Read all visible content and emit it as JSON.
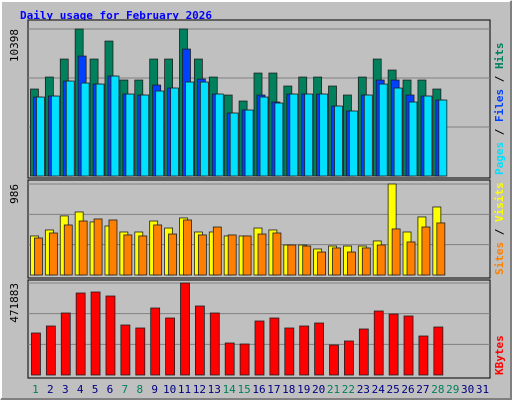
{
  "separator": "/",
  "chart_data": [
    {
      "type": "bar",
      "title": "Daily usage for February 2026",
      "ylim": [
        0,
        10398
      ],
      "yticks": [
        10398
      ],
      "series": [
        {
          "name": "Hits",
          "color": "#00805c",
          "values": [
            6151,
            6999,
            8272,
            10398,
            8272,
            9545,
            6787,
            6787,
            8272,
            8272,
            10398,
            8272,
            6999,
            5727,
            5303,
            7282,
            7282,
            6363,
            6999,
            6999,
            6363,
            5727,
            6999,
            8272,
            7494,
            6787,
            6787,
            6151,
            null,
            null,
            null
          ]
        },
        {
          "name": "Files",
          "color": "#0040ff",
          "values": [
            5585,
            5656,
            6717,
            8484,
            6504,
            7070,
            5797,
            5727,
            6434,
            6222,
            8979,
            6858,
            5797,
            4454,
            4666,
            5727,
            5232,
            5797,
            5797,
            5797,
            4949,
            4596,
            5727,
            6787,
            6787,
            5727,
            5656,
            5373,
            null,
            null,
            null
          ]
        },
        {
          "name": "Pages",
          "color": "#00e0ff",
          "values": [
            5585,
            5656,
            6717,
            6575,
            6504,
            7070,
            5797,
            5727,
            6010,
            6222,
            6646,
            6646,
            5797,
            4454,
            4666,
            5585,
            5161,
            5797,
            5797,
            5797,
            4949,
            4596,
            5727,
            6504,
            6222,
            5232,
            5656,
            5373,
            null,
            null,
            null
          ]
        }
      ]
    },
    {
      "type": "bar",
      "ylim": [
        0,
        986
      ],
      "yticks": [
        986
      ],
      "series": [
        {
          "name": "Visits",
          "color": "#ffff00",
          "values": [
            423,
            488,
            640,
            683,
            575,
            531,
            466,
            466,
            585,
            509,
            618,
            466,
            466,
            423,
            423,
            509,
            488,
            325,
            325,
            282,
            314,
            314,
            314,
            369,
            986,
            466,
            629,
            737,
            null,
            null,
            null
          ]
        },
        {
          "name": "Sites",
          "color": "#ff8000",
          "values": [
            401,
            455,
            542,
            585,
            607,
            596,
            434,
            423,
            542,
            444,
            596,
            434,
            520,
            434,
            423,
            444,
            455,
            325,
            314,
            249,
            293,
            249,
            293,
            325,
            499,
            358,
            520,
            564,
            null,
            null,
            null
          ]
        }
      ]
    },
    {
      "type": "bar",
      "ylim": [
        0,
        471883
      ],
      "yticks": [
        471883
      ],
      "categories": [
        "1",
        "2",
        "3",
        "4",
        "5",
        "6",
        "7",
        "8",
        "9",
        "10",
        "11",
        "12",
        "13",
        "14",
        "15",
        "16",
        "17",
        "18",
        "19",
        "20",
        "21",
        "22",
        "23",
        "24",
        "25",
        "26",
        "27",
        "28",
        "29",
        "30",
        "31"
      ],
      "category_colors": [
        "#00805c",
        "#000080",
        "#000080",
        "#000080",
        "#000080",
        "#000080",
        "#00805c",
        "#00805c",
        "#000080",
        "#000080",
        "#000080",
        "#000080",
        "#000080",
        "#00805c",
        "#00805c",
        "#000080",
        "#000080",
        "#000080",
        "#000080",
        "#000080",
        "#00805c",
        "#00805c",
        "#000080",
        "#000080",
        "#000080",
        "#000080",
        "#000080",
        "#00805c",
        "#00805c",
        "#000080",
        "#000080"
      ],
      "series": [
        {
          "name": "KBytes",
          "color": "#ff0000",
          "values": [
            215418,
            251321,
            317998,
            420578,
            425707,
            405191,
            256450,
            241063,
            343643,
            292353,
            471883,
            353901,
            317998,
            164128,
            158999,
            276966,
            292353,
            241063,
            251321,
            266708,
            153870,
            174386,
            235934,
            328256,
            312869,
            302611,
            200031,
            246192,
            null,
            null,
            null
          ]
        }
      ]
    }
  ]
}
